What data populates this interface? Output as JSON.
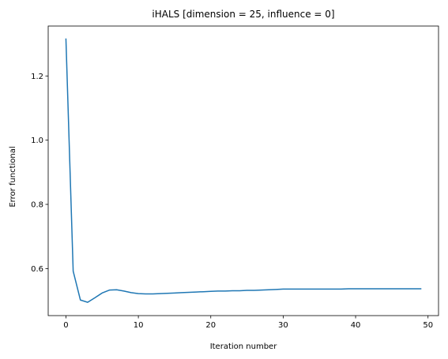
{
  "chart_data": {
    "type": "line",
    "title": "iHALS [dimension = 25, influence = 0]",
    "xlabel": "Iteration number",
    "ylabel": "Error functional",
    "xlim": [
      -2.45,
      51.45
    ],
    "ylim": [
      0.4535,
      1.3555
    ],
    "x_ticks": [
      0,
      10,
      20,
      30,
      40,
      50
    ],
    "y_ticks": [
      0.6,
      0.8,
      1.0,
      1.2
    ],
    "y_tick_labels": [
      "0.6",
      "0.8",
      "1.0",
      "1.2"
    ],
    "grid": false,
    "series": [
      {
        "color": "#1f77b4",
        "x": [
          0,
          1,
          2,
          3,
          4,
          5,
          6,
          7,
          8,
          9,
          10,
          11,
          12,
          13,
          14,
          15,
          16,
          17,
          18,
          19,
          20,
          21,
          22,
          23,
          24,
          25,
          26,
          27,
          28,
          29,
          30,
          31,
          32,
          33,
          34,
          35,
          36,
          37,
          38,
          39,
          40,
          41,
          42,
          43,
          44,
          45,
          46,
          47,
          48,
          49
        ],
        "y": [
          1.315,
          0.592,
          0.502,
          0.495,
          0.509,
          0.524,
          0.533,
          0.534,
          0.53,
          0.525,
          0.522,
          0.521,
          0.521,
          0.522,
          0.523,
          0.524,
          0.525,
          0.526,
          0.527,
          0.528,
          0.529,
          0.53,
          0.53,
          0.531,
          0.531,
          0.532,
          0.532,
          0.533,
          0.534,
          0.535,
          0.536,
          0.536,
          0.536,
          0.536,
          0.536,
          0.536,
          0.536,
          0.536,
          0.536,
          0.537,
          0.537,
          0.537,
          0.537,
          0.537,
          0.537,
          0.537,
          0.537,
          0.537,
          0.537,
          0.537
        ]
      }
    ]
  }
}
